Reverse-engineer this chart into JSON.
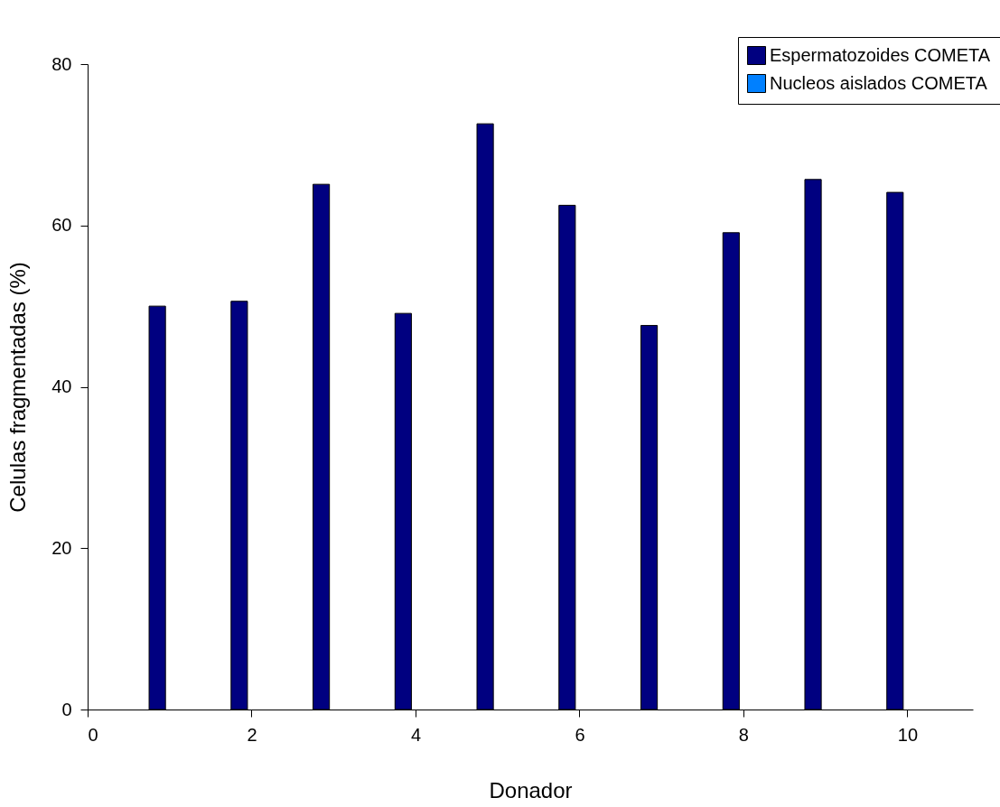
{
  "chart_data": {
    "type": "bar",
    "xlabel": "Donador",
    "ylabel": "Celulas fragmentadas (%)",
    "x": [
      1,
      2,
      3,
      4,
      5,
      6,
      7,
      8,
      9,
      10
    ],
    "series": [
      {
        "name": "Espermatozoides COMETA",
        "color": "#000080",
        "values": [
          50.0,
          50.6,
          65.1,
          49.1,
          72.6,
          62.5,
          47.6,
          59.1,
          65.7,
          64.1
        ]
      },
      {
        "name": "Nucleos aislados COMETA",
        "color": "#0080ff",
        "values": [
          null,
          null,
          null,
          null,
          null,
          null,
          null,
          null,
          null,
          null
        ]
      }
    ],
    "xlim": [
      0,
      10.8
    ],
    "xticks": [
      0,
      2,
      4,
      6,
      8,
      10
    ],
    "ylim": [
      0,
      80
    ],
    "yticks": [
      0,
      20,
      40,
      60,
      80
    ],
    "grid": false,
    "legend": "top right"
  }
}
